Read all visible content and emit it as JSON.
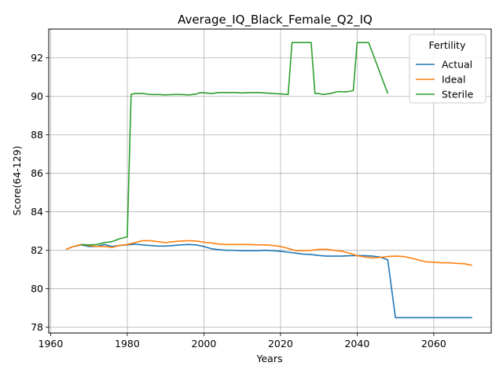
{
  "chart_data": {
    "type": "line",
    "title": "Average_IQ_Black_Female_Q2_IQ",
    "xlabel": "Years",
    "ylabel": "Score(64-129)",
    "xlim": [
      1959.5,
      2075
    ],
    "ylim": [
      77.7,
      93.5
    ],
    "xticks": [
      1960,
      1980,
      2000,
      2020,
      2040,
      2060
    ],
    "yticks": [
      78,
      80,
      82,
      84,
      86,
      88,
      90,
      92
    ],
    "grid": true,
    "legend": {
      "title": "Fertility",
      "placement": "top-right"
    },
    "series": [
      {
        "name": "Actual",
        "color": "#1f77b4",
        "points": [
          [
            1964,
            82.05
          ],
          [
            1966,
            82.2
          ],
          [
            1968,
            82.28
          ],
          [
            1970,
            82.2
          ],
          [
            1972,
            82.2
          ],
          [
            1974,
            82.3
          ],
          [
            1976,
            82.2
          ],
          [
            1978,
            82.25
          ],
          [
            1980,
            82.28
          ],
          [
            1982,
            82.32
          ],
          [
            1984,
            82.28
          ],
          [
            1986,
            82.25
          ],
          [
            1988,
            82.22
          ],
          [
            1990,
            82.22
          ],
          [
            1992,
            82.25
          ],
          [
            1994,
            82.28
          ],
          [
            1996,
            82.3
          ],
          [
            1998,
            82.28
          ],
          [
            2000,
            82.2
          ],
          [
            2002,
            82.08
          ],
          [
            2004,
            82.03
          ],
          [
            2006,
            82.0
          ],
          [
            2008,
            82.0
          ],
          [
            2010,
            81.98
          ],
          [
            2012,
            81.98
          ],
          [
            2014,
            81.98
          ],
          [
            2016,
            82.0
          ],
          [
            2018,
            81.98
          ],
          [
            2020,
            81.95
          ],
          [
            2022,
            81.9
          ],
          [
            2024,
            81.85
          ],
          [
            2026,
            81.8
          ],
          [
            2028,
            81.78
          ],
          [
            2030,
            81.73
          ],
          [
            2032,
            81.7
          ],
          [
            2034,
            81.7
          ],
          [
            2036,
            81.7
          ],
          [
            2038,
            81.72
          ],
          [
            2040,
            81.73
          ],
          [
            2042,
            81.72
          ],
          [
            2044,
            81.7
          ],
          [
            2046,
            81.65
          ],
          [
            2048,
            81.5
          ],
          [
            2050,
            78.5
          ],
          [
            2055,
            78.5
          ],
          [
            2060,
            78.5
          ],
          [
            2065,
            78.5
          ],
          [
            2070,
            78.5
          ]
        ]
      },
      {
        "name": "Ideal",
        "color": "#ff7f0e",
        "points": [
          [
            1964,
            82.05
          ],
          [
            1966,
            82.2
          ],
          [
            1968,
            82.3
          ],
          [
            1970,
            82.25
          ],
          [
            1972,
            82.2
          ],
          [
            1974,
            82.2
          ],
          [
            1976,
            82.15
          ],
          [
            1978,
            82.25
          ],
          [
            1980,
            82.3
          ],
          [
            1982,
            82.4
          ],
          [
            1984,
            82.5
          ],
          [
            1986,
            82.5
          ],
          [
            1988,
            82.45
          ],
          [
            1990,
            82.4
          ],
          [
            1992,
            82.45
          ],
          [
            1994,
            82.48
          ],
          [
            1996,
            82.5
          ],
          [
            1998,
            82.48
          ],
          [
            2000,
            82.42
          ],
          [
            2002,
            82.38
          ],
          [
            2004,
            82.32
          ],
          [
            2006,
            82.3
          ],
          [
            2008,
            82.3
          ],
          [
            2010,
            82.3
          ],
          [
            2012,
            82.3
          ],
          [
            2014,
            82.28
          ],
          [
            2016,
            82.28
          ],
          [
            2018,
            82.25
          ],
          [
            2020,
            82.2
          ],
          [
            2022,
            82.1
          ],
          [
            2024,
            81.98
          ],
          [
            2026,
            81.98
          ],
          [
            2028,
            82.0
          ],
          [
            2030,
            82.05
          ],
          [
            2032,
            82.05
          ],
          [
            2034,
            82.0
          ],
          [
            2036,
            81.95
          ],
          [
            2038,
            81.85
          ],
          [
            2040,
            81.72
          ],
          [
            2042,
            81.65
          ],
          [
            2044,
            81.6
          ],
          [
            2046,
            81.63
          ],
          [
            2048,
            81.68
          ],
          [
            2050,
            81.7
          ],
          [
            2052,
            81.68
          ],
          [
            2054,
            81.6
          ],
          [
            2056,
            81.5
          ],
          [
            2058,
            81.4
          ],
          [
            2060,
            81.38
          ],
          [
            2062,
            81.35
          ],
          [
            2064,
            81.35
          ],
          [
            2066,
            81.32
          ],
          [
            2068,
            81.3
          ],
          [
            2070,
            81.22
          ]
        ]
      },
      {
        "name": "Sterile",
        "color": "#2ca02c",
        "points": [
          [
            1968,
            82.3
          ],
          [
            1970,
            82.28
          ],
          [
            1972,
            82.3
          ],
          [
            1974,
            82.4
          ],
          [
            1976,
            82.45
          ],
          [
            1978,
            82.6
          ],
          [
            1980,
            82.7
          ],
          [
            1981,
            90.1
          ],
          [
            1982,
            90.15
          ],
          [
            1984,
            90.15
          ],
          [
            1986,
            90.1
          ],
          [
            1988,
            90.1
          ],
          [
            1990,
            90.08
          ],
          [
            1992,
            90.1
          ],
          [
            1994,
            90.1
          ],
          [
            1996,
            90.08
          ],
          [
            1998,
            90.12
          ],
          [
            1999,
            90.2
          ],
          [
            2002,
            90.15
          ],
          [
            2004,
            90.2
          ],
          [
            2006,
            90.2
          ],
          [
            2008,
            90.2
          ],
          [
            2010,
            90.18
          ],
          [
            2012,
            90.2
          ],
          [
            2014,
            90.2
          ],
          [
            2016,
            90.18
          ],
          [
            2018,
            90.15
          ],
          [
            2020,
            90.13
          ],
          [
            2022,
            90.1
          ],
          [
            2023,
            92.8
          ],
          [
            2026,
            92.8
          ],
          [
            2028,
            92.8
          ],
          [
            2029,
            90.15
          ],
          [
            2030,
            90.15
          ],
          [
            2031,
            90.1
          ],
          [
            2033,
            90.15
          ],
          [
            2035,
            90.25
          ],
          [
            2037,
            90.23
          ],
          [
            2039,
            90.3
          ],
          [
            2040,
            92.8
          ],
          [
            2043,
            92.8
          ],
          [
            2048,
            90.15
          ]
        ]
      }
    ]
  }
}
